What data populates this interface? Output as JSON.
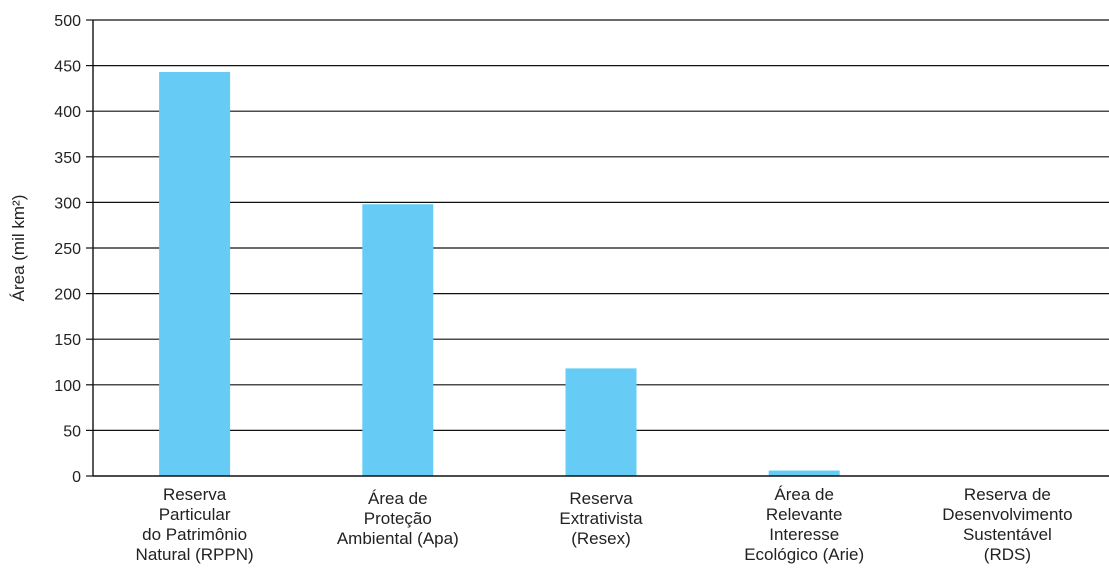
{
  "chart_data": {
    "type": "bar",
    "title": "",
    "xlabel": "",
    "ylabel": "Área (mil km²)",
    "ylim": [
      0,
      500
    ],
    "yticks": [
      0,
      50,
      100,
      150,
      200,
      250,
      300,
      350,
      400,
      450,
      500
    ],
    "grid": true,
    "bar_color": "#66ccf5",
    "categories": [
      [
        "Reserva",
        "Particular",
        "do Patrimônio",
        "Natural (RPPN)"
      ],
      [
        "Área de",
        "Proteção",
        "Ambiental (Apa)"
      ],
      [
        "Reserva",
        "Extrativista",
        "(Resex)"
      ],
      [
        "Área de",
        "Relevante",
        "Interesse",
        "Ecológico (Arie)"
      ],
      [
        "Reserva de",
        "Desenvolvimento",
        "Sustentável",
        "(RDS)"
      ]
    ],
    "values": [
      443,
      298,
      118,
      6,
      0
    ]
  }
}
